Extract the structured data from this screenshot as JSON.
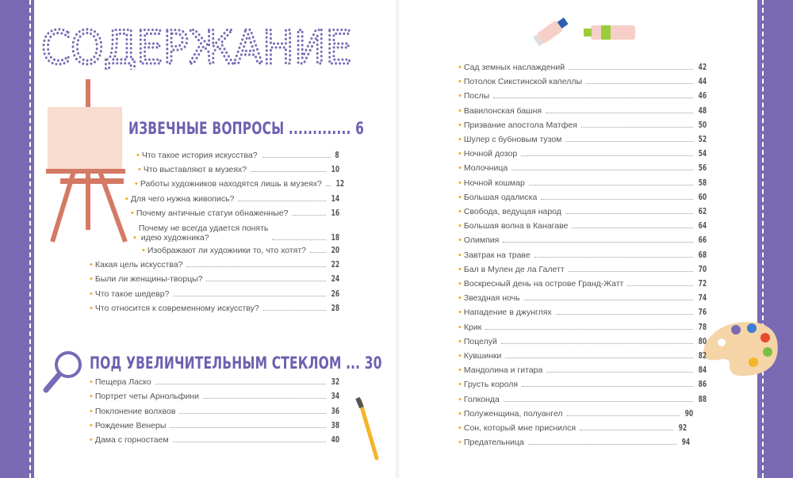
{
  "title": "СОДЕРЖАНИЕ",
  "colors": {
    "brand_purple": "#7a6ab4",
    "bullet_orange": "#f2a81d",
    "easel": "#d47a64",
    "canvas": "#f8dcd0"
  },
  "sections": [
    {
      "heading": "ИЗВЕЧНЫЕ ВОПРОСЫ ............. 6",
      "items": [
        {
          "label": "Что такое история искусства?",
          "page": "8"
        },
        {
          "label": "Что выставляют в музеях?",
          "page": "10"
        },
        {
          "label": "Работы художников находятся лишь в музеях?",
          "page": "12"
        },
        {
          "label": "Для чего нужна живопись?",
          "page": "14"
        },
        {
          "label": "Почему античные статуи обнаженные?",
          "page": "16"
        },
        {
          "label": "Почему не всегда удается понять\n идею художника?",
          "page": "18"
        },
        {
          "label": "Изображают ли художники то, что хотят?",
          "page": "20"
        },
        {
          "label": "Какая цель искусства?",
          "page": "22"
        },
        {
          "label": "Были ли женщины-творцы?",
          "page": "24"
        },
        {
          "label": "Что такое шедевр?",
          "page": "26"
        },
        {
          "label": "Что относится к современному искусству?",
          "page": "28"
        }
      ]
    },
    {
      "heading": "ПОД УВЕЛИЧИТЕЛЬНЫМ СТЕКЛОМ ... 30",
      "items": [
        {
          "label": "Пещера Ласко",
          "page": "32"
        },
        {
          "label": "Портрет четы Арнольфини",
          "page": "34"
        },
        {
          "label": "Поклонение волхвов",
          "page": "36"
        },
        {
          "label": "Рождение Венеры",
          "page": "38"
        },
        {
          "label": "Дама с горностаем",
          "page": "40"
        },
        {
          "label": "Сад земных наслаждений",
          "page": "42"
        },
        {
          "label": "Потолок Сикстинской капеллы",
          "page": "44"
        },
        {
          "label": "Послы",
          "page": "46"
        },
        {
          "label": "Вавилонская башня",
          "page": "48"
        },
        {
          "label": "Призвание апостола Матфея",
          "page": "50"
        },
        {
          "label": "Шулер с бубновым тузом",
          "page": "52"
        },
        {
          "label": "Ночной дозор",
          "page": "54"
        },
        {
          "label": "Молочница",
          "page": "56"
        },
        {
          "label": "Ночной кошмар",
          "page": "58"
        },
        {
          "label": "Большая одалиска",
          "page": "60"
        },
        {
          "label": "Свобода, ведущая народ",
          "page": "62"
        },
        {
          "label": "Большая волна в Канагаве",
          "page": "64"
        },
        {
          "label": "Олимпия",
          "page": "66"
        },
        {
          "label": "Завтрак на траве",
          "page": "68"
        },
        {
          "label": "Бал в Мулен де ла Галетт",
          "page": "70"
        },
        {
          "label": "Воскресный день на острове Гранд-Жатт",
          "page": "72"
        },
        {
          "label": "Звездная ночь",
          "page": "74"
        },
        {
          "label": "Нападение в джунглях",
          "page": "76"
        },
        {
          "label": "Крик",
          "page": "78"
        },
        {
          "label": "Поцелуй",
          "page": "80"
        },
        {
          "label": "Кувшинки",
          "page": "82"
        },
        {
          "label": "Мандолина и гитара",
          "page": "84"
        },
        {
          "label": "Грусть короля",
          "page": "86"
        },
        {
          "label": "Голконда",
          "page": "88"
        },
        {
          "label": "Полуженщина, полуангел",
          "page": "90"
        },
        {
          "label": "Сон, который мне приснился",
          "page": "92"
        },
        {
          "label": "Предательница",
          "page": "94"
        }
      ]
    }
  ]
}
